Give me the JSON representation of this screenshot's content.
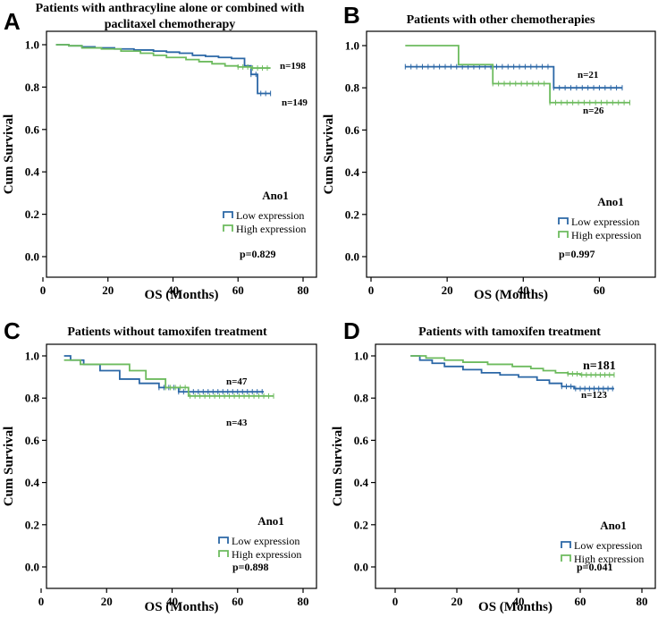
{
  "colors": {
    "low": "#2b67a6",
    "high": "#6dbb5e",
    "axis": "#000000"
  },
  "legend": {
    "title": "Ano1",
    "low": "Low expression",
    "high": "High expression"
  },
  "chart_data": [
    {
      "id": "A",
      "type": "line",
      "letter": "A",
      "title_lines": [
        "Patients with anthracyline alone or combined with",
        "paclitaxel chemotherapy"
      ],
      "xlabel": "OS (Months)",
      "ylabel": "Cum Survival",
      "xlim": [
        0,
        80
      ],
      "ylim": [
        0,
        1.0
      ],
      "xticks": [
        0,
        20,
        40,
        60,
        80
      ],
      "yticks": [
        0.0,
        0.2,
        0.4,
        0.6,
        0.8,
        1.0
      ],
      "xtick_labels": [
        "0",
        "20",
        "40",
        "60",
        "80"
      ],
      "ytick_labels": [
        "0.0",
        "0.2",
        "0.4",
        "0.6",
        "0.8",
        "1.0"
      ],
      "p_value": "p=0.829",
      "series": [
        {
          "name": "Low expression",
          "n_label": "n=149",
          "x": [
            4,
            8,
            12,
            16,
            22,
            28,
            34,
            38,
            42,
            46,
            50,
            54,
            58,
            62,
            64,
            66,
            70
          ],
          "y": [
            1.0,
            0.995,
            0.99,
            0.985,
            0.98,
            0.975,
            0.97,
            0.965,
            0.96,
            0.95,
            0.945,
            0.94,
            0.935,
            0.9,
            0.86,
            0.77,
            0.77
          ]
        },
        {
          "name": "High expression",
          "n_label": "n=198",
          "x": [
            4,
            8,
            12,
            18,
            24,
            30,
            34,
            38,
            44,
            48,
            52,
            56,
            60,
            64,
            70
          ],
          "y": [
            1.0,
            0.995,
            0.985,
            0.98,
            0.97,
            0.96,
            0.95,
            0.94,
            0.93,
            0.92,
            0.91,
            0.9,
            0.895,
            0.89,
            0.89
          ]
        }
      ]
    },
    {
      "id": "B",
      "type": "line",
      "letter": "B",
      "title_lines": [
        "Patients with other chemotherapies"
      ],
      "xlabel": "OS (Months)",
      "ylabel": "Cum Survival",
      "xlim": [
        0,
        70
      ],
      "ylim": [
        0,
        1.0
      ],
      "xticks": [
        0,
        20,
        40,
        60
      ],
      "yticks": [
        0.0,
        0.2,
        0.4,
        0.6,
        0.8,
        1.0
      ],
      "xtick_labels": [
        "0",
        "20",
        "40",
        "60"
      ],
      "ytick_labels": [
        "0.0",
        "0.2",
        "0.4",
        "0.6",
        "0.8",
        "1.0"
      ],
      "p_value": "p=0.997",
      "series": [
        {
          "name": "Low expression",
          "n_label": "n=21",
          "x": [
            9,
            48,
            66
          ],
          "y": [
            0.9,
            0.8,
            0.8
          ]
        },
        {
          "name": "High expression",
          "n_label": "n=26",
          "x": [
            9,
            23,
            32,
            47,
            68
          ],
          "y": [
            1.0,
            0.91,
            0.82,
            0.73,
            0.73
          ]
        }
      ]
    },
    {
      "id": "C",
      "type": "line",
      "letter": "C",
      "title_lines": [
        "Patients without tamoxifen treatment"
      ],
      "xlabel": "OS (Months)",
      "ylabel": "Cum Survival",
      "xlim": [
        0,
        80
      ],
      "ylim": [
        0,
        1.0
      ],
      "xticks": [
        0,
        20,
        40,
        60,
        80
      ],
      "yticks": [
        0.0,
        0.2,
        0.4,
        0.6,
        0.8,
        1.0
      ],
      "xtick_labels": [
        "0",
        "20",
        "40",
        "60",
        "80"
      ],
      "ytick_labels": [
        "0.0",
        "0.2",
        "0.4",
        "0.6",
        "0.8",
        "1.0"
      ],
      "p_value": "p=0.898",
      "series": [
        {
          "name": "Low expression",
          "n_label": "n=43",
          "x": [
            7,
            9,
            13,
            18,
            24,
            30,
            36,
            42,
            68
          ],
          "y": [
            1.0,
            0.98,
            0.96,
            0.93,
            0.89,
            0.87,
            0.85,
            0.83,
            0.83
          ]
        },
        {
          "name": "High expression",
          "n_label": "n=47",
          "x": [
            7,
            12,
            20,
            27,
            32,
            38,
            45,
            71
          ],
          "y": [
            0.98,
            0.96,
            0.96,
            0.93,
            0.89,
            0.85,
            0.81,
            0.81
          ]
        }
      ]
    },
    {
      "id": "D",
      "type": "line",
      "letter": "D",
      "title_lines": [
        "Patients with tamoxifen treatment"
      ],
      "xlabel": "OS (Months)",
      "ylabel": "Cum Survival",
      "xlim": [
        0,
        80
      ],
      "ylim": [
        0,
        1.0
      ],
      "xticks": [
        0,
        20,
        40,
        60,
        80
      ],
      "yticks": [
        0.0,
        0.2,
        0.4,
        0.6,
        0.8,
        1.0
      ],
      "xtick_labels": [
        "0",
        "20",
        "40",
        "60",
        "80"
      ],
      "ytick_labels": [
        "0.0",
        "0.2",
        "0.4",
        "0.6",
        "0.8",
        "1.0"
      ],
      "p_value": "p=0.041",
      "series": [
        {
          "name": "Low expression",
          "n_label": "n=123",
          "x": [
            5,
            8,
            12,
            16,
            22,
            28,
            34,
            40,
            46,
            50,
            54,
            58,
            71
          ],
          "y": [
            1.0,
            0.98,
            0.965,
            0.95,
            0.935,
            0.92,
            0.91,
            0.9,
            0.885,
            0.87,
            0.855,
            0.845,
            0.845
          ]
        },
        {
          "name": "High expression",
          "n_label": "n=181",
          "x": [
            5,
            10,
            16,
            22,
            30,
            38,
            44,
            48,
            52,
            56,
            60,
            71
          ],
          "y": [
            1.0,
            0.99,
            0.98,
            0.97,
            0.96,
            0.95,
            0.94,
            0.93,
            0.92,
            0.915,
            0.91,
            0.91
          ]
        }
      ]
    }
  ]
}
